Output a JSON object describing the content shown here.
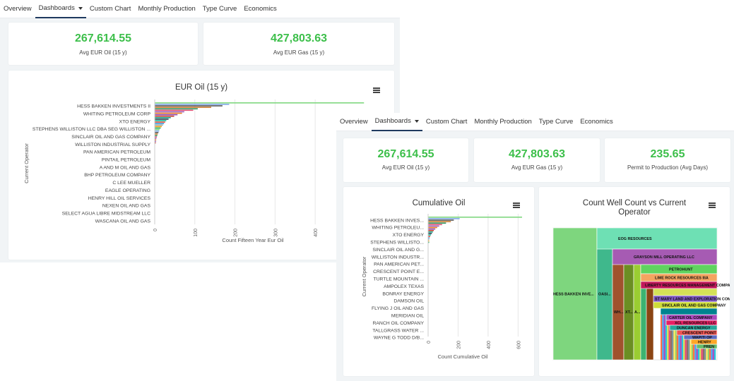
{
  "nav": {
    "tabs": [
      "Overview",
      "Dashboards",
      "Custom Chart",
      "Monthly Production",
      "Type Curve",
      "Economics"
    ],
    "active_tab": "Dashboards"
  },
  "colors": {
    "kpi_green": "#3cbf4a",
    "active_tab_underline": "#1f3a5f"
  },
  "back": {
    "kpis": [
      {
        "value": "267,614.55",
        "label": "Avg EUR Oil (15 y)"
      },
      {
        "value": "427,803.63",
        "label": "Avg EUR Gas (15 y)"
      }
    ],
    "chart_menu_icon": "menu-icon",
    "chart_data": {
      "type": "bar",
      "orientation": "horizontal",
      "title": "EUR Oil (15 y)",
      "xlabel": "Count Fifteen Year Eur Oil",
      "ylabel": "Current Operator",
      "x_ticks": [
        "0",
        "100",
        "200",
        "300",
        "400"
      ],
      "xlim": [
        0,
        560
      ],
      "categories": [
        "HESS BAKKEN INVESTMENTS II",
        "WHITING PETROLEUM CORP",
        "XTO ENERGY",
        "STEPHENS WILLISTON LLC DBA SEG WILLISTON ...",
        "SINCLAIR OIL AND GAS COMPANY",
        "WILLISTON INDUSTRIAL SUPPLY",
        "PAN AMERICAN PETROLEUM",
        "PINTAIL PETROLEUM",
        "A AND M OIL AND GAS",
        "BHP PETROLEUM COMPANY",
        "C LEE MUELLER",
        "EAGLE OPERATING",
        "HENRY HILL OIL SERVICES",
        "NEXEN OIL AND GAS",
        "SELECT AGUA LIBRE MIDSTREAM LLC",
        "WASCANA OIL AND GAS"
      ]
    }
  },
  "front": {
    "kpis": [
      {
        "value": "267,614.55",
        "label": "Avg EUR Oil (15 y)"
      },
      {
        "value": "427,803.63",
        "label": "Avg EUR Gas (15 y)"
      },
      {
        "value": "235.65",
        "label": "Permit to Production (Avg Days)"
      }
    ],
    "chart_data": [
      {
        "type": "bar",
        "orientation": "horizontal",
        "title": "Cumulative Oil",
        "xlabel": "Count Cumulative Oil",
        "ylabel": "Current Operator",
        "x_ticks": [
          "0",
          "200",
          "400",
          "600"
        ],
        "xlim": [
          0,
          650
        ],
        "categories": [
          "HESS BAKKEN INVES...",
          "WHITING PETROLEU...",
          "XTO ENERGY",
          "STEPHENS WILLISTO...",
          "SINCLAIR OIL AND G...",
          "WILLISTON INDUSTR...",
          "PAN AMERICAN PET...",
          "CRESCENT POINT E...",
          "TURTLE MOUNTAIN ...",
          "AMPOLEX TEXAS",
          "BONRAY ENERGY",
          "DAMSON OIL",
          "FLYING J OIL AND GAS",
          "MERIDIAN OIL",
          "RANCH OIL COMPANY",
          "TALLGRASS WATER ...",
          "WAYNE G TODD D/B..."
        ]
      },
      {
        "type": "treemap",
        "title": "Count Well Count vs Current Operator",
        "labels": [
          "HESS BAKKEN INVE...",
          "EOG RESOURCES",
          "GRAYSON MILL OPERATING LLC",
          "PETROHUNT",
          "LIME ROCK RESOURCES IIIA",
          "LIBERTY RESOURCES MANAGEMENT COMPANY",
          "OASI...",
          "WH...",
          "XT...",
          "A...",
          "ST MARY LAND AND EXPLORATION COMPANY",
          "SINCLAIR OIL AND GAS COMPANY",
          "CARTER OIL COMPANY",
          "XCL RESOURCES LLC",
          "DUNCAN ENERGY",
          "CRESCENT POINT",
          "WAPITI OP",
          "HENRY",
          "PREN"
        ]
      }
    ]
  }
}
